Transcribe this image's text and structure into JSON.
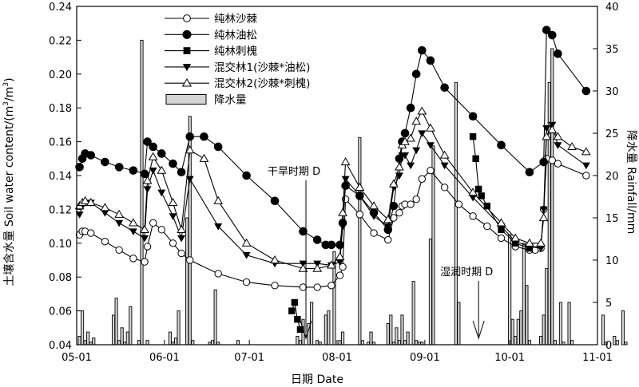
{
  "chart_data": {
    "type": "line",
    "xlabel": "日期 Date",
    "ylabel": "土壤含水量 Soil water content/(m³/m³)",
    "ylabel_main": "土壤含水量 Soil water content/(m",
    "ylabel_exp1": "3",
    "ylabel_mid": "/m",
    "ylabel_exp2": "3",
    "ylabel_end": ")",
    "y2label": "降水量 Rainfall/mm",
    "ylim": [
      0.04,
      0.24
    ],
    "y2lim": [
      0,
      40
    ],
    "xlim": [
      "05-01",
      "11-01"
    ],
    "x_ticks": [
      "05-01",
      "06-01",
      "07-01",
      "08-01",
      "09-01",
      "10-01",
      "11-01"
    ],
    "y_ticks": [
      "0.04",
      "0.06",
      "0.08",
      "0.10",
      "0.12",
      "0.14",
      "0.16",
      "0.18",
      "0.20",
      "0.22",
      "0.24"
    ],
    "y2_ticks": [
      "0",
      "5",
      "10",
      "15",
      "20",
      "25",
      "30",
      "35",
      "40"
    ],
    "annotations": [
      {
        "id": "drought",
        "text": "干旱时期 D",
        "arrow_day": 81
      },
      {
        "id": "wet",
        "text": "湿润时期 D",
        "arrow_day": 142
      }
    ],
    "legend_position": "top-center",
    "series": [
      {
        "name": "纯林沙棘",
        "marker": "circle-open",
        "x": [
          1,
          2,
          3,
          5,
          10,
          15,
          20,
          24,
          25,
          27,
          30,
          34,
          37,
          40,
          50,
          60,
          70,
          80,
          85,
          90,
          93,
          94,
          95,
          100,
          105,
          110,
          112,
          114,
          115,
          116,
          118,
          120,
          122,
          125,
          130,
          135,
          140,
          145,
          150,
          155,
          160,
          162,
          164,
          165,
          166,
          168,
          170,
          180
        ],
        "y": [
          0.105,
          0.107,
          0.107,
          0.106,
          0.101,
          0.096,
          0.091,
          0.089,
          0.098,
          0.112,
          0.108,
          0.1,
          0.094,
          0.09,
          0.082,
          0.077,
          0.075,
          0.074,
          0.074,
          0.075,
          0.081,
          0.086,
          0.126,
          0.117,
          0.106,
          0.102,
          0.115,
          0.118,
          0.122,
          0.123,
          0.123,
          0.126,
          0.138,
          0.143,
          0.133,
          0.123,
          0.116,
          0.11,
          0.103,
          0.098,
          0.096,
          0.096,
          0.097,
          0.12,
          0.15,
          0.149,
          0.147,
          0.14
        ]
      },
      {
        "name": "纯林油松",
        "marker": "circle-filled",
        "x": [
          1,
          2,
          3,
          5,
          10,
          15,
          20,
          24,
          25,
          27,
          30,
          34,
          37,
          40,
          45,
          50,
          60,
          70,
          80,
          85,
          88,
          90,
          93,
          94,
          95,
          100,
          105,
          110,
          112,
          114,
          115,
          116,
          118,
          120,
          122,
          125,
          130,
          140,
          150,
          160,
          165,
          166,
          168,
          170,
          180
        ],
        "y": [
          0.145,
          0.15,
          0.153,
          0.152,
          0.148,
          0.145,
          0.143,
          0.141,
          0.16,
          0.157,
          0.153,
          0.147,
          0.142,
          0.163,
          0.163,
          0.157,
          0.14,
          0.125,
          0.107,
          0.102,
          0.099,
          0.099,
          0.099,
          0.112,
          0.134,
          0.128,
          0.118,
          0.108,
          0.122,
          0.15,
          0.16,
          0.165,
          0.18,
          0.2,
          0.214,
          0.208,
          0.192,
          0.175,
          0.158,
          0.142,
          0.148,
          0.226,
          0.223,
          0.212,
          0.19
        ]
      },
      {
        "name": "纯林刺槐",
        "marker": "square-filled",
        "x": [
          76,
          77,
          78,
          79,
          140,
          141,
          142,
          143,
          145,
          150,
          155,
          160
        ],
        "y": [
          0.06,
          0.065,
          0.055,
          0.049,
          0.163,
          0.15,
          0.132,
          0.128,
          0.122,
          0.108,
          0.1,
          0.097
        ],
        "segments": [
          [
            0,
            4
          ],
          [
            4,
            12
          ]
        ]
      },
      {
        "name": "混交林1(沙棘*油松)",
        "marker": "triangle-down-filled",
        "x": [
          1,
          2,
          3,
          5,
          10,
          15,
          20,
          24,
          25,
          27,
          30,
          34,
          37,
          40,
          50,
          60,
          70,
          80,
          85,
          90,
          93,
          94,
          95,
          100,
          105,
          110,
          112,
          114,
          115,
          116,
          118,
          120,
          122,
          125,
          130,
          140,
          150,
          155,
          160,
          164,
          165,
          166,
          168,
          170,
          180
        ],
        "y": [
          0.117,
          0.122,
          0.124,
          0.124,
          0.118,
          0.112,
          0.107,
          0.103,
          0.132,
          0.143,
          0.13,
          0.116,
          0.103,
          0.138,
          0.11,
          0.093,
          0.088,
          0.088,
          0.088,
          0.087,
          0.089,
          0.11,
          0.138,
          0.128,
          0.116,
          0.11,
          0.133,
          0.14,
          0.152,
          0.152,
          0.146,
          0.155,
          0.165,
          0.158,
          0.146,
          0.127,
          0.11,
          0.101,
          0.098,
          0.097,
          0.12,
          0.168,
          0.17,
          0.158,
          0.146
        ]
      },
      {
        "name": "混交林2(沙棘*刺槐)",
        "marker": "triangle-up-open",
        "x": [
          1,
          2,
          3,
          5,
          10,
          15,
          20,
          24,
          25,
          27,
          30,
          34,
          37,
          40,
          45,
          50,
          60,
          70,
          80,
          85,
          90,
          93,
          94,
          95,
          100,
          105,
          110,
          112,
          114,
          115,
          116,
          118,
          120,
          122,
          125,
          130,
          140,
          150,
          155,
          160,
          164,
          165,
          166,
          168,
          170,
          175,
          180
        ],
        "y": [
          0.122,
          0.124,
          0.125,
          0.124,
          0.121,
          0.117,
          0.112,
          0.108,
          0.137,
          0.151,
          0.143,
          0.124,
          0.108,
          0.155,
          0.15,
          0.125,
          0.1,
          0.09,
          0.085,
          0.085,
          0.087,
          0.092,
          0.118,
          0.148,
          0.133,
          0.122,
          0.114,
          0.135,
          0.145,
          0.158,
          0.16,
          0.162,
          0.172,
          0.178,
          0.168,
          0.152,
          0.13,
          0.112,
          0.103,
          0.1,
          0.1,
          0.115,
          0.163,
          0.167,
          0.163,
          0.157,
          0.154
        ]
      }
    ],
    "rainfall": {
      "name": "降水量",
      "days": [
        1,
        2,
        3,
        4,
        5,
        6,
        13,
        14,
        15,
        16,
        17,
        18,
        19,
        22,
        23,
        25,
        33,
        34,
        35,
        36,
        39,
        40,
        41,
        47,
        48,
        49,
        50,
        57,
        78,
        79,
        80,
        82,
        83,
        85,
        86,
        88,
        89,
        91,
        93,
        94,
        100,
        101,
        103,
        104,
        105,
        110,
        111,
        112,
        113,
        114,
        115,
        116,
        117,
        119,
        120,
        121,
        122,
        125,
        126,
        134,
        135,
        153,
        154,
        155,
        156,
        157,
        158,
        159,
        160,
        164,
        165,
        166,
        167,
        168,
        169,
        171,
        172,
        174,
        175,
        186,
        187,
        190,
        191,
        193,
        194
      ],
      "values": [
        1.0,
        4.0,
        0.5,
        1.5,
        0.3,
        0.8,
        3.5,
        5.5,
        0.5,
        2.0,
        0.3,
        1.5,
        4.5,
        0.5,
        36.0,
        0.5,
        1.5,
        0.3,
        0.8,
        4.0,
        15.0,
        27.0,
        0.5,
        0.3,
        0.5,
        6.5,
        0.3,
        0.5,
        1.0,
        0.5,
        3.0,
        2.5,
        5.0,
        0.5,
        0.3,
        3.5,
        4.0,
        11.0,
        0.5,
        1.5,
        24.5,
        0.5,
        0.3,
        1.5,
        0.3,
        2.5,
        3.5,
        0.3,
        2.0,
        0.5,
        3.5,
        0.5,
        1.5,
        7.5,
        0.5,
        0.3,
        0.3,
        12.5,
        23.5,
        31.0,
        5.0,
        13.0,
        3.0,
        1.0,
        3.0,
        4.0,
        12.0,
        7.0,
        0.5,
        1.0,
        3.5,
        9.0,
        31.0,
        35.0,
        0.5,
        5.0,
        0.3,
        5.0,
        0.5,
        3.5,
        0.3,
        1.0,
        0.5,
        4.0,
        0.3
      ]
    }
  }
}
